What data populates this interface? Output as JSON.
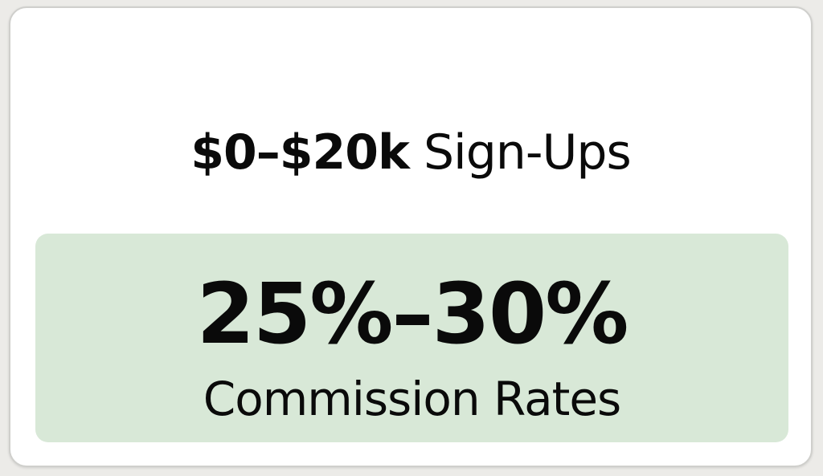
{
  "headline": {
    "range": "$0–$20k",
    "label": "Sign-Ups"
  },
  "highlight": {
    "rate": "25%–30%",
    "label": "Commission Rates"
  },
  "colors": {
    "background": "#ecebe8",
    "card": "#ffffff",
    "highlight_panel": "#d8e8d7",
    "text": "#0a0a0a"
  }
}
